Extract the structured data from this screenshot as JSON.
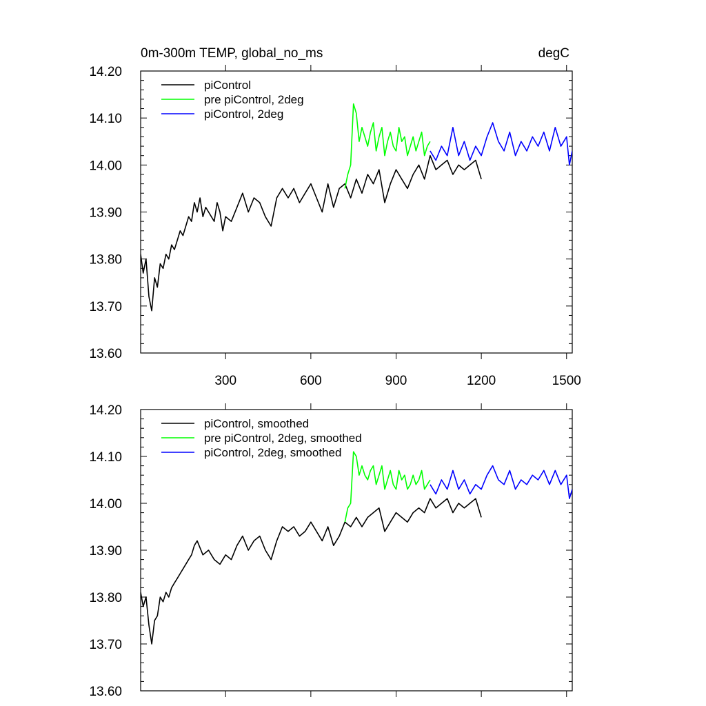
{
  "chart_data": [
    {
      "type": "line",
      "title_left": "0m-300m TEMP, global_no_ms",
      "title_right": "degC",
      "xlim": [
        1,
        1520
      ],
      "ylim": [
        13.6,
        14.2
      ],
      "xticks": [
        300,
        600,
        900,
        1200,
        1500
      ],
      "xtick_labels": [
        "300",
        "600",
        "900",
        "1200",
        "1500"
      ],
      "yticks": [
        13.6,
        13.7,
        13.8,
        13.9,
        14.0,
        14.1,
        14.2
      ],
      "ytick_labels": [
        "13.60",
        "13.70",
        "13.80",
        "13.90",
        "14.00",
        "14.10",
        "14.20"
      ],
      "legend": "top-left",
      "series": [
        {
          "name": "piControl",
          "color": "#000000",
          "x": [
            1,
            10,
            20,
            30,
            40,
            50,
            60,
            70,
            80,
            90,
            100,
            110,
            120,
            130,
            140,
            150,
            160,
            170,
            180,
            190,
            200,
            210,
            220,
            230,
            240,
            250,
            260,
            270,
            280,
            290,
            300,
            320,
            340,
            360,
            380,
            400,
            420,
            440,
            460,
            480,
            500,
            520,
            540,
            560,
            580,
            600,
            620,
            640,
            660,
            680,
            700,
            720,
            740,
            760,
            780,
            800,
            820,
            840,
            860,
            880,
            900,
            920,
            940,
            960,
            980,
            1000,
            1020,
            1040,
            1060,
            1080,
            1100,
            1120,
            1140,
            1160,
            1180,
            1200
          ],
          "values": [
            13.81,
            13.77,
            13.8,
            13.72,
            13.69,
            13.76,
            13.74,
            13.79,
            13.78,
            13.81,
            13.8,
            13.83,
            13.82,
            13.84,
            13.86,
            13.85,
            13.87,
            13.89,
            13.88,
            13.92,
            13.9,
            13.93,
            13.89,
            13.91,
            13.9,
            13.89,
            13.88,
            13.92,
            13.9,
            13.86,
            13.89,
            13.88,
            13.91,
            13.94,
            13.9,
            13.93,
            13.92,
            13.89,
            13.87,
            13.93,
            13.95,
            13.93,
            13.95,
            13.92,
            13.94,
            13.96,
            13.93,
            13.9,
            13.96,
            13.91,
            13.95,
            13.96,
            13.93,
            13.97,
            13.94,
            13.98,
            13.96,
            13.99,
            13.92,
            13.96,
            13.99,
            13.97,
            13.95,
            13.98,
            14.0,
            13.97,
            14.02,
            13.99,
            14.0,
            14.01,
            13.98,
            14.0,
            13.99,
            14.0,
            14.01,
            13.97
          ]
        },
        {
          "name": "pre piControl, 2deg",
          "color": "#00ff00",
          "x": [
            720,
            730,
            740,
            750,
            760,
            770,
            780,
            790,
            800,
            810,
            820,
            830,
            840,
            850,
            860,
            870,
            880,
            890,
            900,
            910,
            920,
            930,
            940,
            950,
            960,
            970,
            980,
            990,
            1000,
            1010,
            1020
          ],
          "values": [
            13.95,
            13.98,
            14.0,
            14.13,
            14.11,
            14.05,
            14.08,
            14.06,
            14.04,
            14.07,
            14.09,
            14.03,
            14.06,
            14.08,
            14.02,
            14.05,
            14.07,
            14.04,
            14.03,
            14.08,
            14.05,
            14.06,
            14.02,
            14.04,
            14.06,
            14.03,
            14.05,
            14.07,
            14.02,
            14.04,
            14.05
          ]
        },
        {
          "name": "piControl, 2deg",
          "color": "#0000ff",
          "x": [
            1020,
            1040,
            1060,
            1080,
            1100,
            1120,
            1140,
            1160,
            1180,
            1200,
            1220,
            1240,
            1260,
            1280,
            1300,
            1320,
            1340,
            1360,
            1380,
            1400,
            1420,
            1440,
            1460,
            1480,
            1500,
            1510,
            1520
          ],
          "values": [
            14.03,
            14.01,
            14.04,
            14.02,
            14.08,
            14.02,
            14.05,
            14.01,
            14.04,
            14.02,
            14.06,
            14.09,
            14.05,
            14.03,
            14.07,
            14.02,
            14.05,
            14.03,
            14.06,
            14.04,
            14.07,
            14.03,
            14.08,
            14.04,
            14.06,
            14.0,
            14.03
          ]
        }
      ]
    },
    {
      "type": "line",
      "title_left": "",
      "title_right": "",
      "xlim": [
        1,
        1520
      ],
      "ylim": [
        13.6,
        14.2
      ],
      "xticks": [
        300,
        600,
        900,
        1200,
        1500
      ],
      "xtick_labels": [],
      "yticks": [
        13.6,
        13.7,
        13.8,
        13.9,
        14.0,
        14.1,
        14.2
      ],
      "ytick_labels": [
        "13.60",
        "13.70",
        "13.80",
        "13.90",
        "14.00",
        "14.10",
        "14.20"
      ],
      "legend": "top-left",
      "series": [
        {
          "name": "piControl, smoothed",
          "color": "#000000",
          "x": [
            1,
            10,
            20,
            30,
            40,
            50,
            60,
            70,
            80,
            90,
            100,
            110,
            120,
            130,
            140,
            150,
            160,
            170,
            180,
            190,
            200,
            220,
            240,
            260,
            280,
            300,
            320,
            340,
            360,
            380,
            400,
            420,
            440,
            460,
            480,
            500,
            520,
            540,
            560,
            580,
            600,
            620,
            640,
            660,
            680,
            700,
            720,
            740,
            760,
            780,
            800,
            820,
            840,
            860,
            880,
            900,
            920,
            940,
            960,
            980,
            1000,
            1020,
            1040,
            1060,
            1080,
            1100,
            1120,
            1140,
            1160,
            1180,
            1200
          ],
          "values": [
            13.81,
            13.78,
            13.8,
            13.74,
            13.7,
            13.75,
            13.76,
            13.8,
            13.79,
            13.81,
            13.8,
            13.82,
            13.83,
            13.84,
            13.85,
            13.86,
            13.87,
            13.88,
            13.89,
            13.91,
            13.92,
            13.89,
            13.9,
            13.88,
            13.87,
            13.89,
            13.88,
            13.91,
            13.93,
            13.9,
            13.92,
            13.93,
            13.9,
            13.88,
            13.92,
            13.95,
            13.94,
            13.95,
            13.93,
            13.94,
            13.96,
            13.94,
            13.92,
            13.95,
            13.91,
            13.93,
            13.96,
            13.95,
            13.97,
            13.95,
            13.97,
            13.98,
            13.99,
            13.94,
            13.96,
            13.98,
            13.97,
            13.96,
            13.98,
            13.99,
            13.98,
            14.01,
            13.99,
            14.0,
            14.01,
            13.98,
            14.0,
            13.99,
            14.0,
            14.01,
            13.97
          ]
        },
        {
          "name": "pre piControl, 2deg, smoothed",
          "color": "#00ff00",
          "x": [
            720,
            730,
            740,
            750,
            760,
            770,
            780,
            790,
            800,
            810,
            820,
            830,
            840,
            850,
            860,
            870,
            880,
            890,
            900,
            910,
            920,
            930,
            940,
            950,
            960,
            970,
            980,
            990,
            1000,
            1010,
            1020
          ],
          "values": [
            13.96,
            13.99,
            14.0,
            14.11,
            14.1,
            14.06,
            14.08,
            14.06,
            14.05,
            14.07,
            14.08,
            14.04,
            14.06,
            14.08,
            14.03,
            14.05,
            14.07,
            14.04,
            14.03,
            14.07,
            14.05,
            14.06,
            14.03,
            14.04,
            14.06,
            14.04,
            14.05,
            14.07,
            14.03,
            14.04,
            14.05
          ]
        },
        {
          "name": "piControl, 2deg, smoothed",
          "color": "#0000ff",
          "x": [
            1020,
            1040,
            1060,
            1080,
            1100,
            1120,
            1140,
            1160,
            1180,
            1200,
            1220,
            1240,
            1260,
            1280,
            1300,
            1320,
            1340,
            1360,
            1380,
            1400,
            1420,
            1440,
            1460,
            1480,
            1500,
            1510,
            1520
          ],
          "values": [
            14.04,
            14.02,
            14.05,
            14.03,
            14.07,
            14.03,
            14.05,
            14.02,
            14.04,
            14.03,
            14.06,
            14.08,
            14.05,
            14.04,
            14.07,
            14.03,
            14.05,
            14.04,
            14.06,
            14.05,
            14.07,
            14.04,
            14.07,
            14.04,
            14.06,
            14.01,
            14.03
          ]
        }
      ]
    }
  ]
}
